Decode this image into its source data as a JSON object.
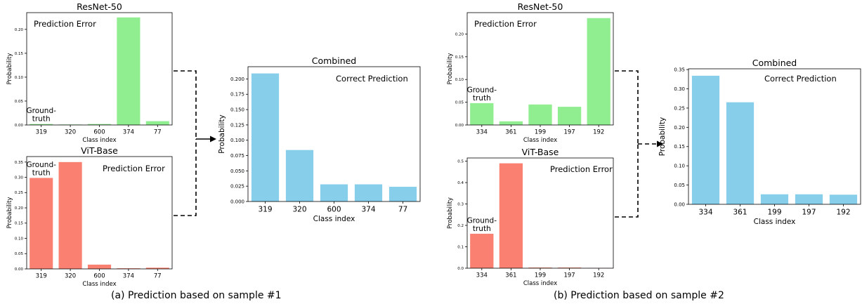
{
  "figure": {
    "caption_a": "(a) Prediction based on sample #1",
    "caption_b": "(b) Prediction based on sample #2"
  },
  "colors": {
    "resnet": "#90ee90",
    "vit": "#fa8072",
    "combined": "#87ceeb"
  },
  "chart_data": [
    {
      "id": "a-resnet",
      "type": "bar",
      "title": "ResNet-50",
      "annotation": "Prediction Error",
      "gt_label": [
        "Ground-",
        "truth"
      ],
      "gt_index": 0,
      "xlabel": "Class index",
      "ylabel": "Probability",
      "categories": [
        "319",
        "320",
        "600",
        "374",
        "77"
      ],
      "values": [
        0.002,
        0.001,
        0.002,
        0.225,
        0.008
      ],
      "ylim": [
        0,
        0.235
      ],
      "yticks": [
        "0.00",
        "0.05",
        "0.10",
        "0.15",
        "0.20"
      ],
      "ytick_values": [
        0,
        0.05,
        0.1,
        0.15,
        0.2
      ],
      "color": "#90ee90"
    },
    {
      "id": "a-vit",
      "type": "bar",
      "title": "ViT-Base",
      "annotation": "Prediction Error",
      "gt_label": [
        "Ground-",
        "truth"
      ],
      "gt_index": 0,
      "xlabel": "Class index",
      "ylabel": "Probability",
      "categories": [
        "319",
        "320",
        "600",
        "374",
        "77"
      ],
      "values": [
        0.298,
        0.35,
        0.014,
        0.002,
        0.004
      ],
      "ylim": [
        0,
        0.368
      ],
      "yticks": [
        "0.00",
        "0.05",
        "0.10",
        "0.15",
        "0.20",
        "0.25",
        "0.30",
        "0.35"
      ],
      "ytick_values": [
        0,
        0.05,
        0.1,
        0.15,
        0.2,
        0.25,
        0.3,
        0.35
      ],
      "color": "#fa8072"
    },
    {
      "id": "a-combined",
      "type": "bar",
      "title": "Combined",
      "annotation": "Correct Prediction",
      "xlabel": "Class index",
      "ylabel": "Probability",
      "categories": [
        "319",
        "320",
        "600",
        "374",
        "77"
      ],
      "values": [
        0.209,
        0.084,
        0.028,
        0.028,
        0.024
      ],
      "ylim": [
        0,
        0.22
      ],
      "yticks": [
        "0.000",
        "0.025",
        "0.050",
        "0.075",
        "0.100",
        "0.125",
        "0.150",
        "0.175",
        "0.200"
      ],
      "ytick_values": [
        0,
        0.025,
        0.05,
        0.075,
        0.1,
        0.125,
        0.15,
        0.175,
        0.2
      ],
      "color": "#87ceeb"
    },
    {
      "id": "b-resnet",
      "type": "bar",
      "title": "ResNet-50",
      "annotation": "Prediction Error",
      "gt_label": [
        "Ground-",
        "truth"
      ],
      "gt_index": 0,
      "xlabel": "Class index",
      "ylabel": "Probability",
      "categories": [
        "334",
        "361",
        "199",
        "197",
        "192"
      ],
      "values": [
        0.048,
        0.008,
        0.045,
        0.04,
        0.235
      ],
      "ylim": [
        0,
        0.247
      ],
      "yticks": [
        "0.00",
        "0.05",
        "0.10",
        "0.15",
        "0.20"
      ],
      "ytick_values": [
        0,
        0.05,
        0.1,
        0.15,
        0.2
      ],
      "color": "#90ee90"
    },
    {
      "id": "b-vit",
      "type": "bar",
      "title": "ViT-Base",
      "annotation": "Prediction Error",
      "gt_label": [
        "Ground-",
        "truth"
      ],
      "gt_index": 0,
      "xlabel": "Class index",
      "ylabel": "Probability",
      "categories": [
        "334",
        "361",
        "199",
        "197",
        "192"
      ],
      "values": [
        0.161,
        0.49,
        0.003,
        0.003,
        0.001
      ],
      "ylim": [
        0,
        0.515
      ],
      "yticks": [
        "0.0",
        "0.1",
        "0.2",
        "0.3",
        "0.4",
        "0.5"
      ],
      "ytick_values": [
        0,
        0.1,
        0.2,
        0.3,
        0.4,
        0.5
      ],
      "color": "#fa8072"
    },
    {
      "id": "b-combined",
      "type": "bar",
      "title": "Combined",
      "annotation": "Correct Prediction",
      "xlabel": "Class index",
      "ylabel": "Probability",
      "categories": [
        "334",
        "361",
        "199",
        "197",
        "192"
      ],
      "values": [
        0.334,
        0.265,
        0.026,
        0.026,
        0.025
      ],
      "ylim": [
        0,
        0.352
      ],
      "yticks": [
        "0.00",
        "0.05",
        "0.10",
        "0.15",
        "0.20",
        "0.25",
        "0.30",
        "0.35"
      ],
      "ytick_values": [
        0,
        0.05,
        0.1,
        0.15,
        0.2,
        0.25,
        0.3,
        0.35
      ],
      "color": "#87ceeb"
    }
  ]
}
